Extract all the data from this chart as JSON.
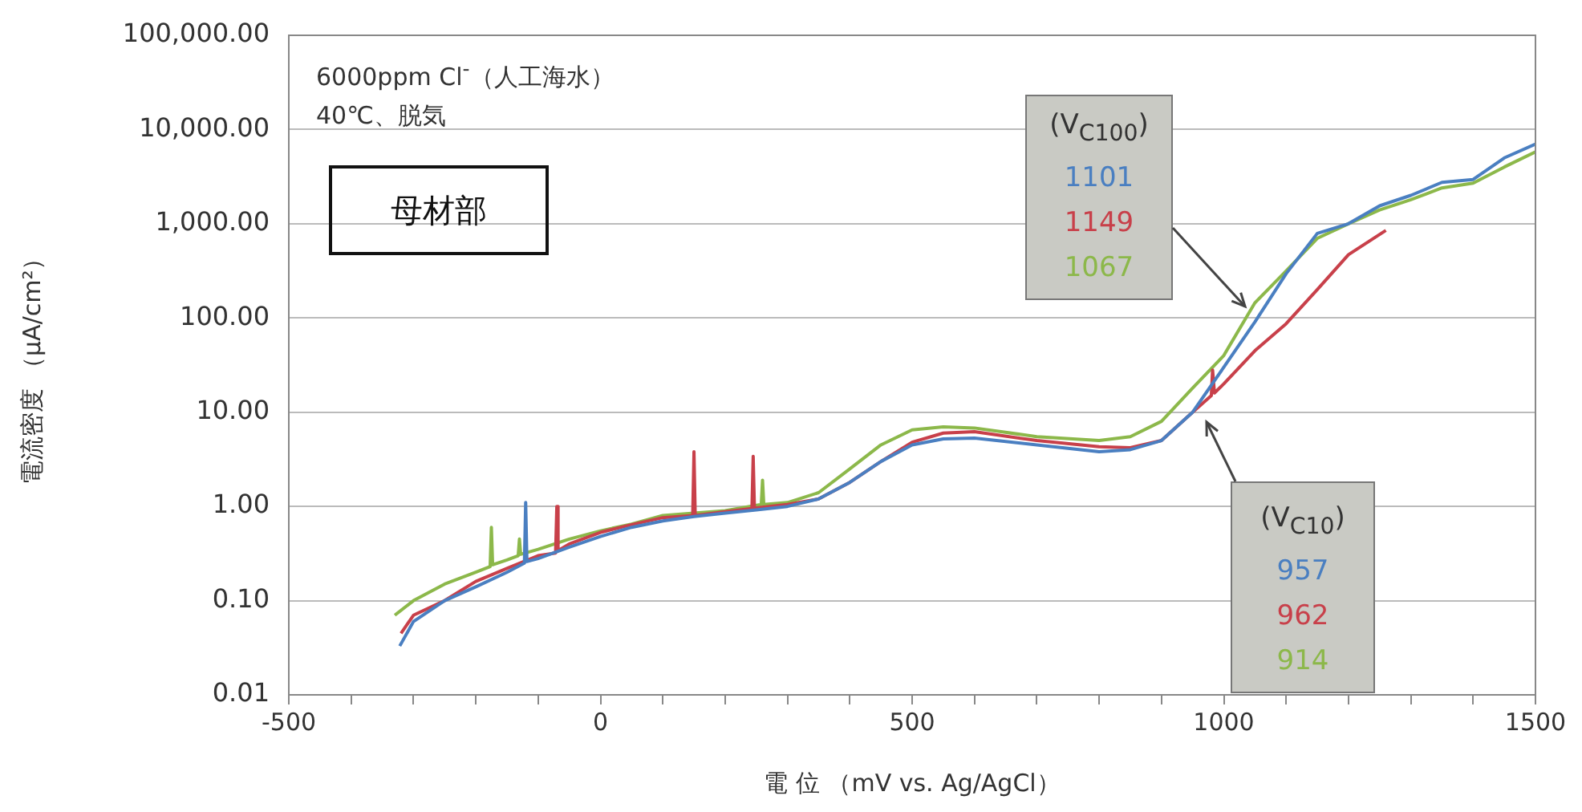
{
  "chart_data": {
    "type": "line",
    "xlabel": "電 位 （mV vs. Ag/AgCl）",
    "ylabel": "電流密度 （μA/cm²）",
    "log": "y",
    "grid": "y",
    "legend": false,
    "marker": "none",
    "line_style": "solid",
    "xlim": [
      -500,
      1500
    ],
    "xticks": [
      -500,
      {
        "value": -400,
        "label": null
      },
      {
        "value": -300,
        "label": null
      },
      {
        "value": -200,
        "label": null
      },
      {
        "value": -100,
        "label": null
      },
      0,
      {
        "value": 100,
        "label": null
      },
      {
        "value": 200,
        "label": null
      },
      {
        "value": 300,
        "label": null
      },
      {
        "value": 400,
        "label": null
      },
      500,
      {
        "value": 600,
        "label": null
      },
      {
        "value": 700,
        "label": null
      },
      {
        "value": 800,
        "label": null
      },
      {
        "value": 900,
        "label": null
      },
      1000,
      {
        "value": 1100,
        "label": null
      },
      {
        "value": 1200,
        "label": null
      },
      {
        "value": 1300,
        "label": null
      },
      {
        "value": 1400,
        "label": null
      },
      1500
    ],
    "ylim": [
      0.01,
      100000
    ],
    "yticks": [
      {
        "value": 0.01,
        "label": "0.01"
      },
      {
        "value": 0.1,
        "label": "0.10"
      },
      {
        "value": 1,
        "label": "1.00"
      },
      {
        "value": 10,
        "label": "10.00"
      },
      {
        "value": 100,
        "label": "100.00"
      },
      {
        "value": 1000,
        "label": "1,000.00"
      },
      {
        "value": 10000,
        "label": "10,000.00"
      },
      {
        "value": 100000,
        "label": "100,000.00"
      }
    ],
    "series": [
      {
        "color": "#4a7fc1",
        "x": [
          -322,
          -300,
          -250,
          -200,
          -150,
          -122,
          -120,
          -118,
          -100,
          -50,
          0,
          50,
          100,
          150,
          200,
          250,
          300,
          350,
          400,
          450,
          500,
          550,
          600,
          700,
          800,
          850,
          900,
          950,
          1000,
          1050,
          1100,
          1150,
          1200,
          1250,
          1300,
          1350,
          1400,
          1450,
          1500
        ],
        "values": [
          0.033,
          0.06,
          0.1,
          0.14,
          0.2,
          0.25,
          1.1,
          0.26,
          0.28,
          0.37,
          0.48,
          0.6,
          0.7,
          0.78,
          0.85,
          0.92,
          1.0,
          1.2,
          1.8,
          3,
          4.5,
          5.2,
          5.3,
          4.5,
          3.8,
          4,
          5,
          10,
          30,
          91,
          295,
          790,
          1000,
          1550,
          2000,
          2750,
          2950,
          5000,
          7000
        ]
      },
      {
        "color": "#c8404a",
        "x": [
          -320,
          -300,
          -250,
          -200,
          -150,
          -100,
          -72,
          -70,
          -68,
          -50,
          0,
          50,
          100,
          148,
          150,
          152,
          200,
          243,
          245,
          247,
          300,
          350,
          400,
          450,
          500,
          550,
          600,
          700,
          800,
          850,
          900,
          950,
          980,
          982,
          985,
          1000,
          1050,
          1100,
          1150,
          1200,
          1260
        ],
        "values": [
          0.045,
          0.07,
          0.1,
          0.16,
          0.22,
          0.3,
          0.32,
          1.0,
          0.34,
          0.4,
          0.53,
          0.64,
          0.76,
          0.8,
          3.8,
          0.8,
          0.88,
          0.95,
          3.4,
          0.96,
          1.05,
          1.2,
          1.8,
          3,
          4.8,
          6,
          6.2,
          5,
          4.3,
          4.2,
          5,
          10,
          15,
          28,
          16,
          20,
          45,
          87,
          200,
          470,
          850
        ]
      },
      {
        "color": "#8cb84a",
        "x": [
          -330,
          -300,
          -250,
          -200,
          -177,
          -175,
          -173,
          -150,
          -132,
          -130,
          -128,
          -100,
          -50,
          0,
          50,
          100,
          150,
          200,
          258,
          260,
          262,
          300,
          350,
          400,
          450,
          500,
          550,
          600,
          700,
          800,
          850,
          900,
          950,
          1000,
          1050,
          1100,
          1150,
          1200,
          1250,
          1300,
          1350,
          1400,
          1450,
          1500
        ],
        "values": [
          0.07,
          0.1,
          0.15,
          0.2,
          0.23,
          0.6,
          0.24,
          0.27,
          0.3,
          0.45,
          0.31,
          0.35,
          0.45,
          0.55,
          0.65,
          0.8,
          0.85,
          0.9,
          1.05,
          1.9,
          1.05,
          1.1,
          1.4,
          2.5,
          4.5,
          6.5,
          7,
          6.8,
          5.5,
          5,
          5.5,
          8,
          18,
          40,
          145,
          316,
          700,
          1000,
          1400,
          1800,
          2400,
          2700,
          4000,
          5800
        ]
      }
    ],
    "annotations": [
      "6000ppm Cl$^{-}$（人工海水）",
      "40℃、脱気",
      "母材部",
      "(V$_{C100}$)",
      "1101",
      "1149",
      "1067",
      "(V$_{C10}$)",
      "957",
      "962",
      "914"
    ]
  }
}
